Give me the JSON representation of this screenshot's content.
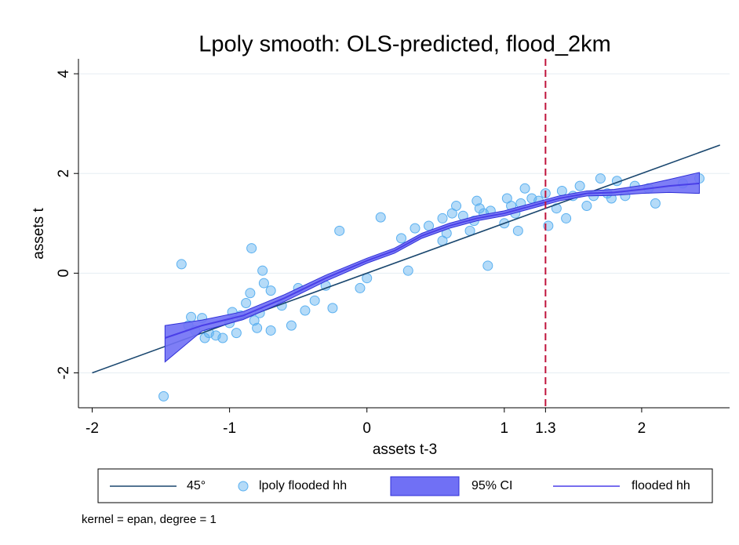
{
  "chart_data": {
    "type": "scatter",
    "title": "Lpoly smooth: OLS-predicted, flood_2km",
    "x_label": "assets t-3",
    "y_label": "assets t",
    "note": "kernel = epan, degree = 1",
    "xlim": [
      -2.1,
      2.64
    ],
    "ylim": [
      -2.7,
      4.3
    ],
    "xticks": [
      -2,
      -1,
      0,
      1,
      1.3,
      2
    ],
    "yticks": [
      -2,
      0,
      2,
      4
    ],
    "grid": true,
    "reference_line": {
      "x": 1.3,
      "color": "#c0143c"
    },
    "series": [
      {
        "name": "45°",
        "type": "line",
        "color": "#1a476f",
        "x": [
          -2,
          2.57
        ],
        "values": [
          -2,
          2.57
        ]
      },
      {
        "name": "lpoly flooded hh",
        "type": "scatter",
        "color": "#5ab0f0",
        "x": [
          -1.48,
          -1.35,
          -1.28,
          -1.3,
          -1.25,
          -1.2,
          -1.18,
          -1.15,
          -1.1,
          -1.05,
          -1.0,
          -0.98,
          -0.95,
          -0.92,
          -0.88,
          -0.85,
          -0.84,
          -0.82,
          -0.8,
          -0.78,
          -0.76,
          -0.75,
          -0.7,
          -0.7,
          -0.62,
          -0.55,
          -0.5,
          -0.45,
          -0.38,
          -0.3,
          -0.25,
          -0.2,
          -0.05,
          0.0,
          0.1,
          0.25,
          0.3,
          0.35,
          0.45,
          0.55,
          0.55,
          0.58,
          0.62,
          0.65,
          0.7,
          0.75,
          0.78,
          0.8,
          0.82,
          0.85,
          0.88,
          0.9,
          1.0,
          1.02,
          1.05,
          1.08,
          1.1,
          1.12,
          1.15,
          1.2,
          1.25,
          1.3,
          1.32,
          1.38,
          1.42,
          1.45,
          1.5,
          1.55,
          1.6,
          1.65,
          1.7,
          1.75,
          1.78,
          1.82,
          1.88,
          1.95,
          2.05,
          2.1,
          2.3,
          2.42
        ],
        "values": [
          -2.47,
          0.18,
          -0.88,
          -1.05,
          -1.15,
          -0.9,
          -1.3,
          -1.2,
          -1.25,
          -1.3,
          -1.0,
          -0.78,
          -1.2,
          -0.85,
          -0.6,
          -0.4,
          0.5,
          -0.95,
          -1.1,
          -0.8,
          0.05,
          -0.2,
          -1.15,
          -0.35,
          -0.65,
          -1.05,
          -0.3,
          -0.75,
          -0.55,
          -0.25,
          -0.7,
          0.85,
          -0.3,
          -0.1,
          1.12,
          0.7,
          0.05,
          0.9,
          0.95,
          0.65,
          1.1,
          0.8,
          1.2,
          1.35,
          1.15,
          0.85,
          1.05,
          1.45,
          1.3,
          1.2,
          0.15,
          1.25,
          1.0,
          1.5,
          1.35,
          1.2,
          0.85,
          1.4,
          1.7,
          1.5,
          1.45,
          1.6,
          0.95,
          1.3,
          1.65,
          1.1,
          1.55,
          1.75,
          1.35,
          1.55,
          1.9,
          1.6,
          1.5,
          1.85,
          1.55,
          1.75,
          1.7,
          1.4,
          1.8,
          1.9
        ]
      },
      {
        "name": "95% CI",
        "type": "band",
        "color": "#7070f5",
        "stroke": "#3030d8",
        "x": [
          -1.47,
          -1.2,
          -0.9,
          -0.6,
          -0.3,
          0,
          0.2,
          0.4,
          0.6,
          0.8,
          1.0,
          1.2,
          1.4,
          1.6,
          1.8,
          2.0,
          2.2,
          2.42
        ],
        "lower": [
          -1.78,
          -1.16,
          -0.93,
          -0.57,
          -0.16,
          0.2,
          0.4,
          0.7,
          0.9,
          1.05,
          1.15,
          1.3,
          1.45,
          1.55,
          1.56,
          1.6,
          1.62,
          1.6
        ],
        "upper": [
          -1.05,
          -0.94,
          -0.77,
          -0.43,
          -0.04,
          0.3,
          0.5,
          0.8,
          1.0,
          1.15,
          1.25,
          1.4,
          1.55,
          1.65,
          1.68,
          1.76,
          1.88,
          2.02
        ]
      },
      {
        "name": "flooded hh",
        "type": "line",
        "color": "#4a3fe8",
        "x": [
          -1.47,
          -1.2,
          -0.9,
          -0.6,
          -0.3,
          0,
          0.2,
          0.4,
          0.6,
          0.8,
          1.0,
          1.2,
          1.4,
          1.6,
          1.8,
          2.0,
          2.2,
          2.42
        ],
        "values": [
          -1.3,
          -1.05,
          -0.85,
          -0.5,
          -0.1,
          0.25,
          0.45,
          0.75,
          0.95,
          1.1,
          1.2,
          1.35,
          1.5,
          1.6,
          1.62,
          1.68,
          1.75,
          1.8
        ]
      }
    ]
  }
}
